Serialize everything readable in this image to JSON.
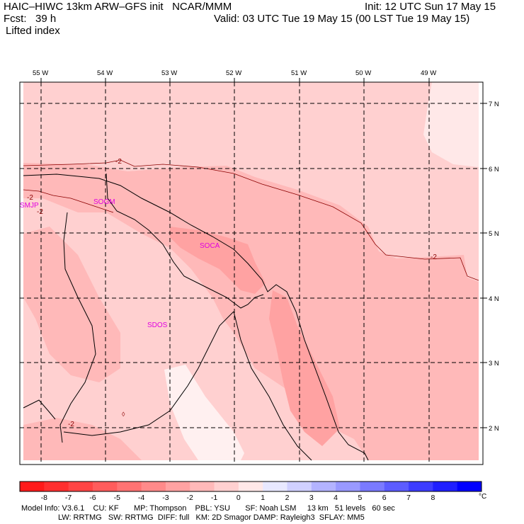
{
  "header": {
    "model_line": "HAIC–HIWC 13km ARW–GFS init   NCAR/MMM",
    "init": "Init: 12 UTC Sun 17 May 15",
    "fcst_label": "Fcst:   39 h",
    "valid": "Valid: 03 UTC Tue 19 May 15 (00 LST Tue 19 May 15)",
    "field": "Lifted index"
  },
  "map": {
    "lon_labels": [
      "55 W",
      "54 W",
      "53 W",
      "52 W",
      "51 W",
      "50 W",
      "49 W"
    ],
    "lat_labels": [
      "7 N",
      "6 N",
      "5 N",
      "4 N",
      "3 N",
      "2 N"
    ],
    "stations": [
      "SMJP",
      "SOGM",
      "SOCA",
      "SDOS"
    ],
    "contour_labels": [
      "-2",
      "-2",
      "-2",
      "-2",
      "-2"
    ]
  },
  "colorbar": {
    "ticks": [
      "-8",
      "-7",
      "-6",
      "-5",
      "-4",
      "-3",
      "-2",
      "-1",
      "0",
      "1",
      "2",
      "3",
      "4",
      "5",
      "6",
      "7",
      "8"
    ],
    "unit": "°C",
    "colors": [
      "#ff1a1a",
      "#ff2f2f",
      "#ff4545",
      "#ff5c5c",
      "#ff7373",
      "#ff8a8a",
      "#ffa2a2",
      "#ffb9b9",
      "#ffd0d0",
      "#ffe8e8",
      "#e8e8ff",
      "#d0d0ff",
      "#b3b3ff",
      "#9999ff",
      "#7a7aff",
      "#5c5cff",
      "#3d3dff",
      "#1f1fff",
      "#0000ff"
    ]
  },
  "footer": {
    "line1": "Model Info: V3.6.1    CU: KF       MP: Thompson    PBL: YSU       SF: Noah LSM     13 km   51 levels   60 sec",
    "line2": "                 LW: RRTMG   SW: RRTMG  DIFF: full   KM: 2D Smagor DAMP: Rayleigh3  SFLAY: MM5"
  }
}
